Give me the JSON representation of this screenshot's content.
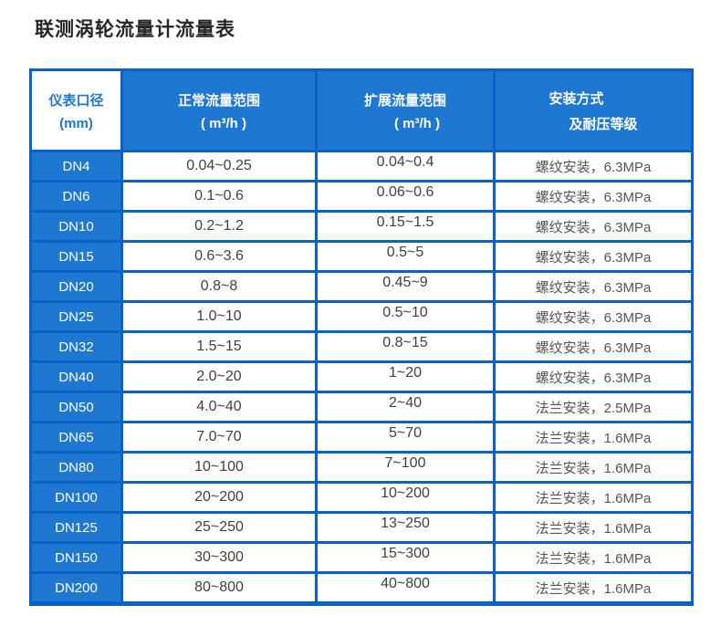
{
  "page": {
    "title": "联测涡轮流量计流量表"
  },
  "colors": {
    "border_blue": "#0a62c8",
    "fill_blue": "#1e78d2",
    "text_dark": "#3f3f3f",
    "text_install": "#555555",
    "title_color": "#262626",
    "cell_white": "#ffffff"
  },
  "table": {
    "headers": {
      "diameter": {
        "line1": "仪表口径",
        "line2": "(mm)"
      },
      "normal": {
        "line1": "正常流量范围",
        "line2": "( m³/h )"
      },
      "extended": {
        "line1": "扩展流量范围",
        "line2": "( m³/h )"
      },
      "install": {
        "line1": "安装方式",
        "line2": "及耐压等级"
      }
    },
    "rows": [
      {
        "dn": "DN4",
        "normal": "0.04~0.25",
        "extended": "0.04~0.4",
        "install": "螺纹安装，6.3MPa"
      },
      {
        "dn": "DN6",
        "normal": "0.1~0.6",
        "extended": "0.06~0.6",
        "install": "螺纹安装，6.3MPa"
      },
      {
        "dn": "DN10",
        "normal": "0.2~1.2",
        "extended": "0.15~1.5",
        "install": "螺纹安装，6.3MPa"
      },
      {
        "dn": "DN15",
        "normal": "0.6~3.6",
        "extended": "0.5~5",
        "install": "螺纹安装，6.3MPa"
      },
      {
        "dn": "DN20",
        "normal": "0.8~8",
        "extended": "0.45~9",
        "install": "螺纹安装，6.3MPa"
      },
      {
        "dn": "DN25",
        "normal": "1.0~10",
        "extended": "0.5~10",
        "install": "螺纹安装，6.3MPa"
      },
      {
        "dn": "DN32",
        "normal": "1.5~15",
        "extended": "0.8~15",
        "install": "螺纹安装，6.3MPa"
      },
      {
        "dn": "DN40",
        "normal": "2.0~20",
        "extended": "1~20",
        "install": "螺纹安装，6.3MPa"
      },
      {
        "dn": "DN50",
        "normal": "4.0~40",
        "extended": "2~40",
        "install": "法兰安装，2.5MPa"
      },
      {
        "dn": "DN65",
        "normal": "7.0~70",
        "extended": "5~70",
        "install": "法兰安装，1.6MPa"
      },
      {
        "dn": "DN80",
        "normal": "10~100",
        "extended": "7~100",
        "install": "法兰安装，1.6MPa"
      },
      {
        "dn": "DN100",
        "normal": "20~200",
        "extended": "10~200",
        "install": "法兰安装，1.6MPa"
      },
      {
        "dn": "DN125",
        "normal": "25~250",
        "extended": "13~250",
        "install": "法兰安装，1.6MPa"
      },
      {
        "dn": "DN150",
        "normal": "30~300",
        "extended": "15~300",
        "install": "法兰安装，1.6MPa"
      },
      {
        "dn": "DN200",
        "normal": "80~800",
        "extended": "40~800",
        "install": "法兰安装，1.6MPa"
      }
    ]
  }
}
